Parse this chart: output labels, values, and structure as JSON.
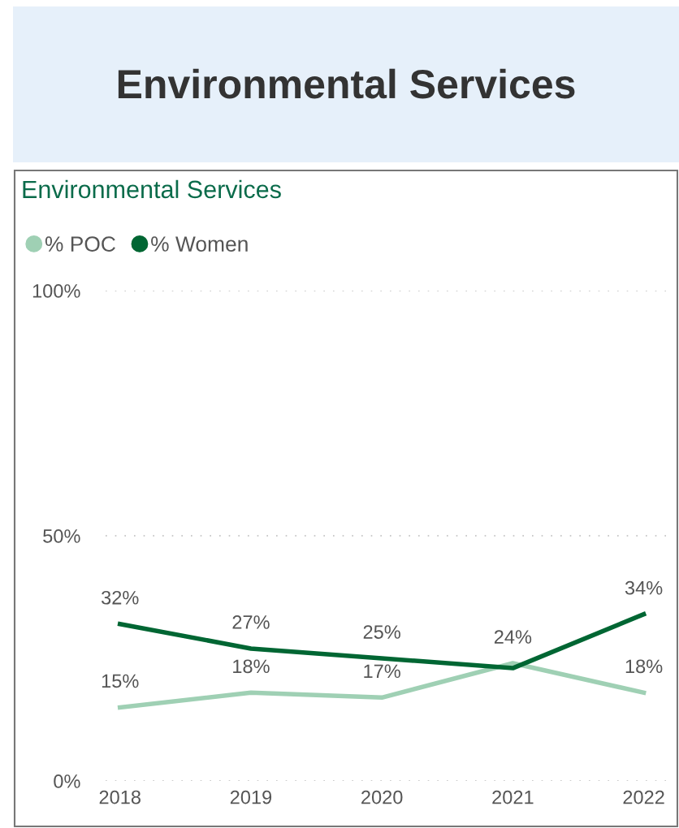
{
  "chart_data": {
    "type": "line",
    "title": "Environmental Services",
    "subtitle": "Environmental Services",
    "categories": [
      "2018",
      "2019",
      "2020",
      "2021",
      "2022"
    ],
    "series": [
      {
        "name": "% POC",
        "color": "#9fd0b4",
        "values": [
          15,
          18,
          17,
          24,
          18
        ],
        "value_labels": [
          "15%",
          "18%",
          "17%",
          "24%",
          "18%"
        ]
      },
      {
        "name": "% Women",
        "color": "#006633",
        "values": [
          32,
          27,
          25,
          23,
          34
        ],
        "value_labels": [
          "32%",
          "27%",
          "25%",
          null,
          "34%"
        ]
      }
    ],
    "ylim": [
      0,
      100
    ],
    "yticks": [
      {
        "value": 0,
        "label": "0%"
      },
      {
        "value": 50,
        "label": "50%"
      },
      {
        "value": 100,
        "label": "100%"
      }
    ],
    "grid": "y",
    "legend": "top left",
    "marker": "none",
    "line_style": "solid"
  }
}
